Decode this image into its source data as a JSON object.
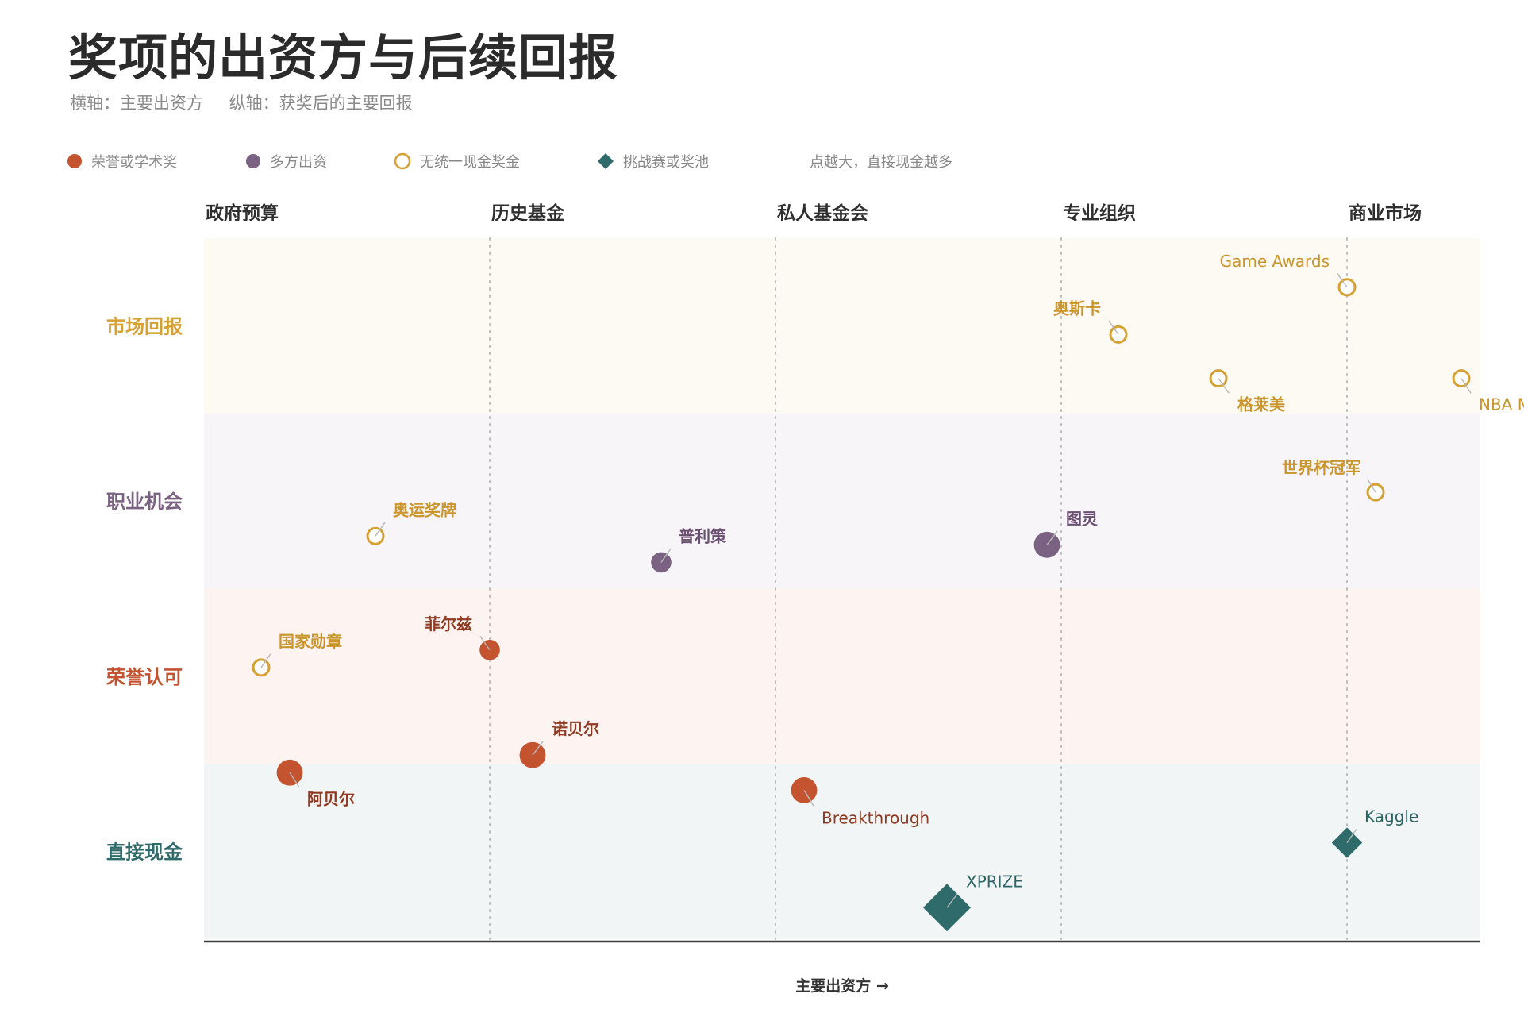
{
  "title": "奖项的出资方与后续回报",
  "subtitle": {
    "x_desc": "横轴：主要出资方",
    "y_desc": "纵轴：获奖后的主要回报"
  },
  "legend": {
    "items": [
      {
        "key": "honor",
        "label": "荣誉或学术奖",
        "shape": "filled-circle",
        "color": "#c4532f"
      },
      {
        "key": "multi",
        "label": "多方出资",
        "shape": "filled-circle",
        "color": "#7b6182"
      },
      {
        "key": "nocash",
        "label": "无统一现金奖金",
        "shape": "ring",
        "color": "#d6a032"
      },
      {
        "key": "challenge",
        "label": "挑战赛或奖池",
        "shape": "diamond",
        "color": "#2f6b6b"
      }
    ],
    "size_note": "点越大，直接现金越多"
  },
  "chart_data": {
    "type": "scatter",
    "x_categories": [
      "政府预算",
      "历史基金",
      "私人基金会",
      "专业组织",
      "商业市场"
    ],
    "y_categories": [
      "市场回报",
      "职业机会",
      "荣誉认可",
      "直接现金"
    ],
    "x_axis_label": "主要出资方 →",
    "band_colors": [
      "#fcfaf2",
      "#f7f5f8",
      "#fdf3f0",
      "#f2f5f5"
    ],
    "row_label_colors": [
      "#d6a032",
      "#7b6182",
      "#c4532f",
      "#2f6b6b"
    ],
    "points": [
      {
        "name": "Game Awards",
        "x": 4.0,
        "y": 0.28,
        "type": "nocash",
        "size": 0
      },
      {
        "name": "奥斯卡",
        "x": 3.2,
        "y": 0.55,
        "type": "nocash",
        "size": 0
      },
      {
        "name": "格莱美",
        "x": 3.55,
        "y": 0.8,
        "type": "nocash",
        "size": 0
      },
      {
        "name": "NBA MVP",
        "x": 4.4,
        "y": 0.8,
        "type": "nocash",
        "size": 0
      },
      {
        "name": "世界杯冠军",
        "x": 4.1,
        "y": 1.45,
        "type": "nocash",
        "size": 0
      },
      {
        "name": "奥运奖牌",
        "x": 0.6,
        "y": 1.7,
        "type": "nocash",
        "size": 0
      },
      {
        "name": "普利策",
        "x": 1.6,
        "y": 1.85,
        "type": "multi",
        "size": 1
      },
      {
        "name": "图灵",
        "x": 2.95,
        "y": 1.75,
        "type": "multi",
        "size": 3
      },
      {
        "name": "菲尔兹",
        "x": 1.0,
        "y": 2.35,
        "type": "honor",
        "size": 1
      },
      {
        "name": "国家勋章",
        "x": 0.2,
        "y": 2.45,
        "type": "nocash",
        "size": 0
      },
      {
        "name": "诺贝尔",
        "x": 1.15,
        "y": 2.95,
        "type": "honor",
        "size": 3
      },
      {
        "name": "阿贝尔",
        "x": 0.3,
        "y": 3.05,
        "type": "honor",
        "size": 3
      },
      {
        "name": "Breakthrough",
        "x": 2.1,
        "y": 3.15,
        "type": "honor",
        "size": 3
      },
      {
        "name": "Kaggle",
        "x": 4.0,
        "y": 3.45,
        "type": "challenge",
        "size": 2
      },
      {
        "name": "XPRIZE",
        "x": 2.6,
        "y": 3.82,
        "type": "challenge",
        "size": 5
      }
    ]
  }
}
